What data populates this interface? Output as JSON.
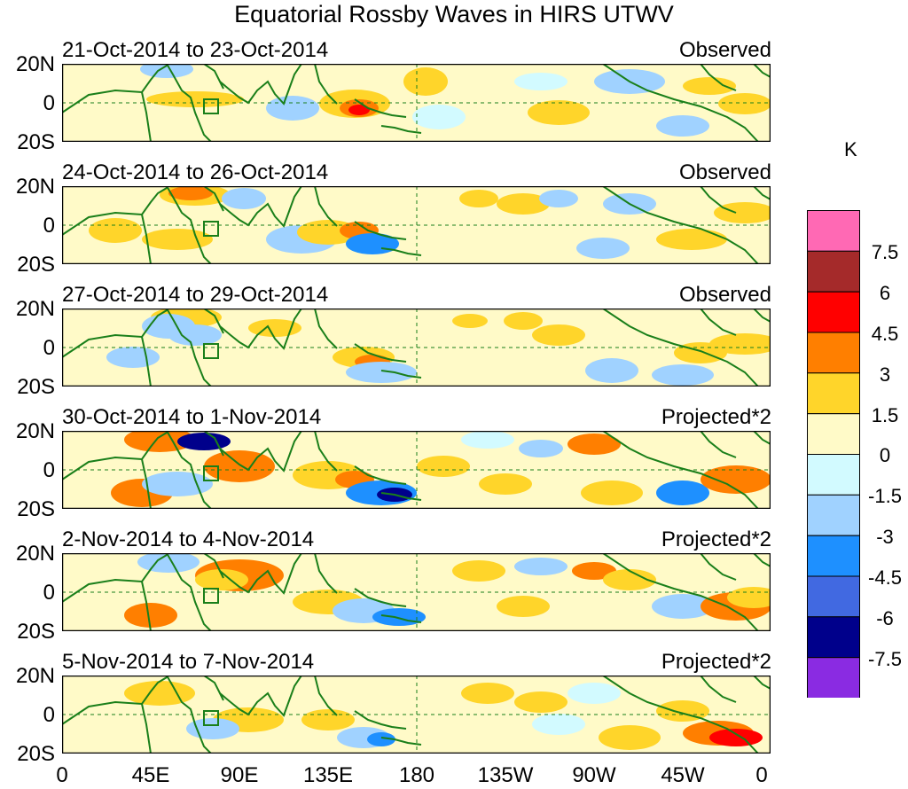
{
  "title": "Equatorial Rossby Waves in HIRS UTWV",
  "panels": [
    {
      "date": "21-Oct-2014 to 23-Oct-2014",
      "type": "Observed"
    },
    {
      "date": "24-Oct-2014 to 26-Oct-2014",
      "type": "Observed"
    },
    {
      "date": "27-Oct-2014 to 29-Oct-2014",
      "type": "Observed"
    },
    {
      "date": "30-Oct-2014 to 1-Nov-2014",
      "type": "Projected*2"
    },
    {
      "date": "2-Nov-2014 to 4-Nov-2014",
      "type": "Projected*2"
    },
    {
      "date": "5-Nov-2014 to 7-Nov-2014",
      "type": "Projected*2"
    }
  ],
  "lat_labels": [
    "20N",
    "0",
    "20S"
  ],
  "lon_labels": [
    "0",
    "45E",
    "90E",
    "135E",
    "180",
    "135W",
    "90W",
    "45W",
    "0"
  ],
  "colorbar": {
    "units": "K",
    "labels": [
      "7.5",
      "6",
      "4.5",
      "3",
      "1.5",
      "0",
      "-1.5",
      "-3",
      "-4.5",
      "-6",
      "-7.5"
    ],
    "colors": [
      "#ff69b4",
      "#a52a2a",
      "#ff0000",
      "#ff7f00",
      "#ffd52a",
      "#fffac8",
      "#d2faff",
      "#a0d2ff",
      "#1e90ff",
      "#4169e1",
      "#00008b",
      "#8a2be2"
    ]
  },
  "land_color": "#1a7f1a"
}
